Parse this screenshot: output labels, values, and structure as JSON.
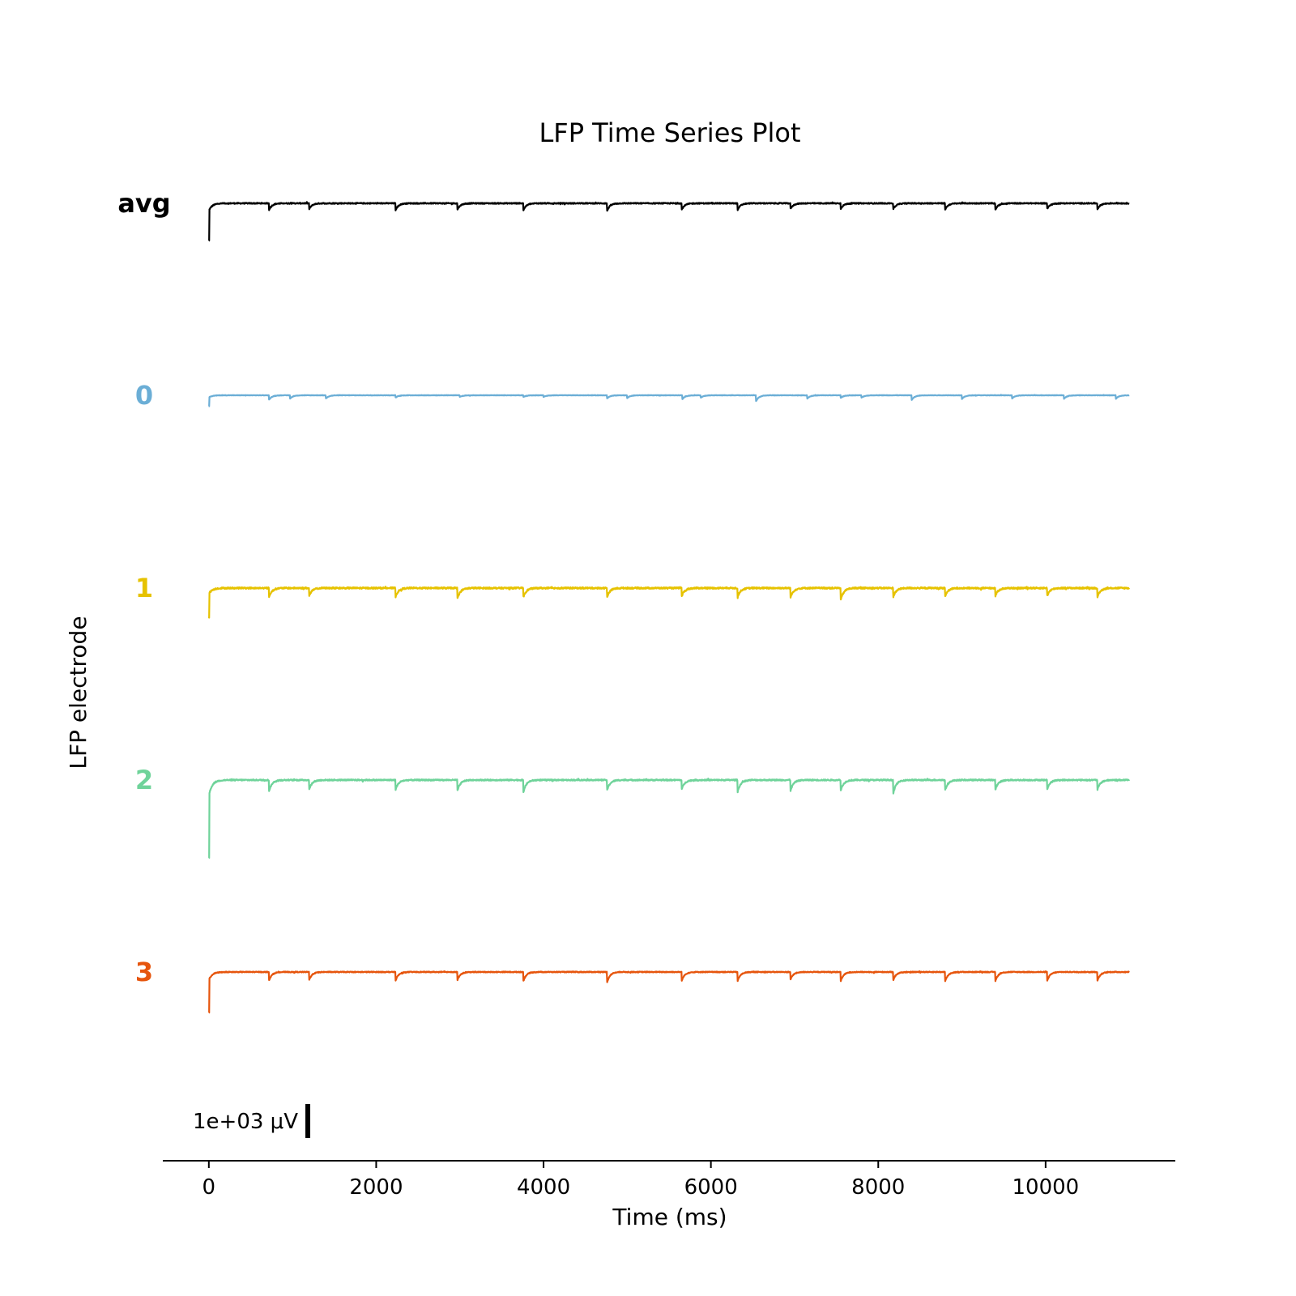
{
  "chart_data": {
    "type": "line",
    "title": "LFP Time Series Plot",
    "xlabel": "Time (ms)",
    "ylabel": "LFP electrode",
    "xlim": [
      -550,
      11550
    ],
    "xticks": [
      0,
      2000,
      4000,
      6000,
      8000,
      10000
    ],
    "xtick_labels": [
      "0",
      "2000",
      "4000",
      "6000",
      "8000",
      "10000"
    ],
    "duration_ms": 11000,
    "scale_bar": {
      "label": "1e+03 μV",
      "value_uV": 1000
    },
    "grid": false,
    "legend": "none",
    "series": [
      {
        "name": "avg",
        "color": "#000000",
        "initial_dip": 1100,
        "noise": 14,
        "events": [
          {
            "t": 720,
            "d": 190
          },
          {
            "t": 1200,
            "d": 170
          },
          {
            "t": 2230,
            "d": 210
          },
          {
            "t": 2970,
            "d": 190
          },
          {
            "t": 3760,
            "d": 200
          },
          {
            "t": 4760,
            "d": 220
          },
          {
            "t": 5650,
            "d": 200
          },
          {
            "t": 6320,
            "d": 190
          },
          {
            "t": 6950,
            "d": 170
          },
          {
            "t": 7550,
            "d": 170
          },
          {
            "t": 8180,
            "d": 170
          },
          {
            "t": 8800,
            "d": 180
          },
          {
            "t": 9400,
            "d": 190
          },
          {
            "t": 10020,
            "d": 160
          },
          {
            "t": 10620,
            "d": 170
          }
        ]
      },
      {
        "name": "0",
        "color": "#6baed6",
        "initial_dip": 320,
        "noise": 6,
        "events": [
          {
            "t": 720,
            "d": 130
          },
          {
            "t": 970,
            "d": 100
          },
          {
            "t": 1400,
            "d": 90
          },
          {
            "t": 2230,
            "d": 70
          },
          {
            "t": 3000,
            "d": 50
          },
          {
            "t": 3760,
            "d": 50
          },
          {
            "t": 4000,
            "d": 50
          },
          {
            "t": 4760,
            "d": 90
          },
          {
            "t": 5000,
            "d": 80
          },
          {
            "t": 5660,
            "d": 110
          },
          {
            "t": 5880,
            "d": 70
          },
          {
            "t": 6540,
            "d": 170
          },
          {
            "t": 7150,
            "d": 100
          },
          {
            "t": 7550,
            "d": 80
          },
          {
            "t": 7800,
            "d": 70
          },
          {
            "t": 8400,
            "d": 140
          },
          {
            "t": 9000,
            "d": 110
          },
          {
            "t": 9600,
            "d": 90
          },
          {
            "t": 10220,
            "d": 100
          },
          {
            "t": 10840,
            "d": 100
          }
        ]
      },
      {
        "name": "1",
        "color": "#e6c200",
        "initial_dip": 850,
        "noise": 22,
        "events": [
          {
            "t": 720,
            "d": 260
          },
          {
            "t": 1200,
            "d": 230
          },
          {
            "t": 2230,
            "d": 270
          },
          {
            "t": 2970,
            "d": 330
          },
          {
            "t": 3760,
            "d": 260
          },
          {
            "t": 4760,
            "d": 260
          },
          {
            "t": 5650,
            "d": 260
          },
          {
            "t": 6320,
            "d": 260
          },
          {
            "t": 6950,
            "d": 290
          },
          {
            "t": 7550,
            "d": 380
          },
          {
            "t": 8180,
            "d": 250
          },
          {
            "t": 8800,
            "d": 240
          },
          {
            "t": 9400,
            "d": 230
          },
          {
            "t": 10020,
            "d": 220
          },
          {
            "t": 10620,
            "d": 280
          }
        ]
      },
      {
        "name": "2",
        "color": "#6fd39a",
        "initial_dip": 2300,
        "noise": 18,
        "events": [
          {
            "t": 720,
            "d": 330
          },
          {
            "t": 1200,
            "d": 270
          },
          {
            "t": 2230,
            "d": 300
          },
          {
            "t": 2970,
            "d": 330
          },
          {
            "t": 3760,
            "d": 350
          },
          {
            "t": 4760,
            "d": 300
          },
          {
            "t": 5650,
            "d": 290
          },
          {
            "t": 6320,
            "d": 350
          },
          {
            "t": 6950,
            "d": 330
          },
          {
            "t": 7550,
            "d": 330
          },
          {
            "t": 8180,
            "d": 390
          },
          {
            "t": 8800,
            "d": 300
          },
          {
            "t": 9400,
            "d": 280
          },
          {
            "t": 10020,
            "d": 260
          },
          {
            "t": 10620,
            "d": 280
          }
        ]
      },
      {
        "name": "3",
        "color": "#e6550d",
        "initial_dip": 1200,
        "noise": 12,
        "events": [
          {
            "t": 720,
            "d": 250
          },
          {
            "t": 1200,
            "d": 230
          },
          {
            "t": 2230,
            "d": 270
          },
          {
            "t": 2970,
            "d": 250
          },
          {
            "t": 3760,
            "d": 260
          },
          {
            "t": 4760,
            "d": 300
          },
          {
            "t": 5650,
            "d": 270
          },
          {
            "t": 6320,
            "d": 260
          },
          {
            "t": 6950,
            "d": 230
          },
          {
            "t": 7550,
            "d": 280
          },
          {
            "t": 8180,
            "d": 230
          },
          {
            "t": 8800,
            "d": 270
          },
          {
            "t": 9400,
            "d": 260
          },
          {
            "t": 10020,
            "d": 250
          },
          {
            "t": 10620,
            "d": 250
          }
        ]
      }
    ]
  }
}
